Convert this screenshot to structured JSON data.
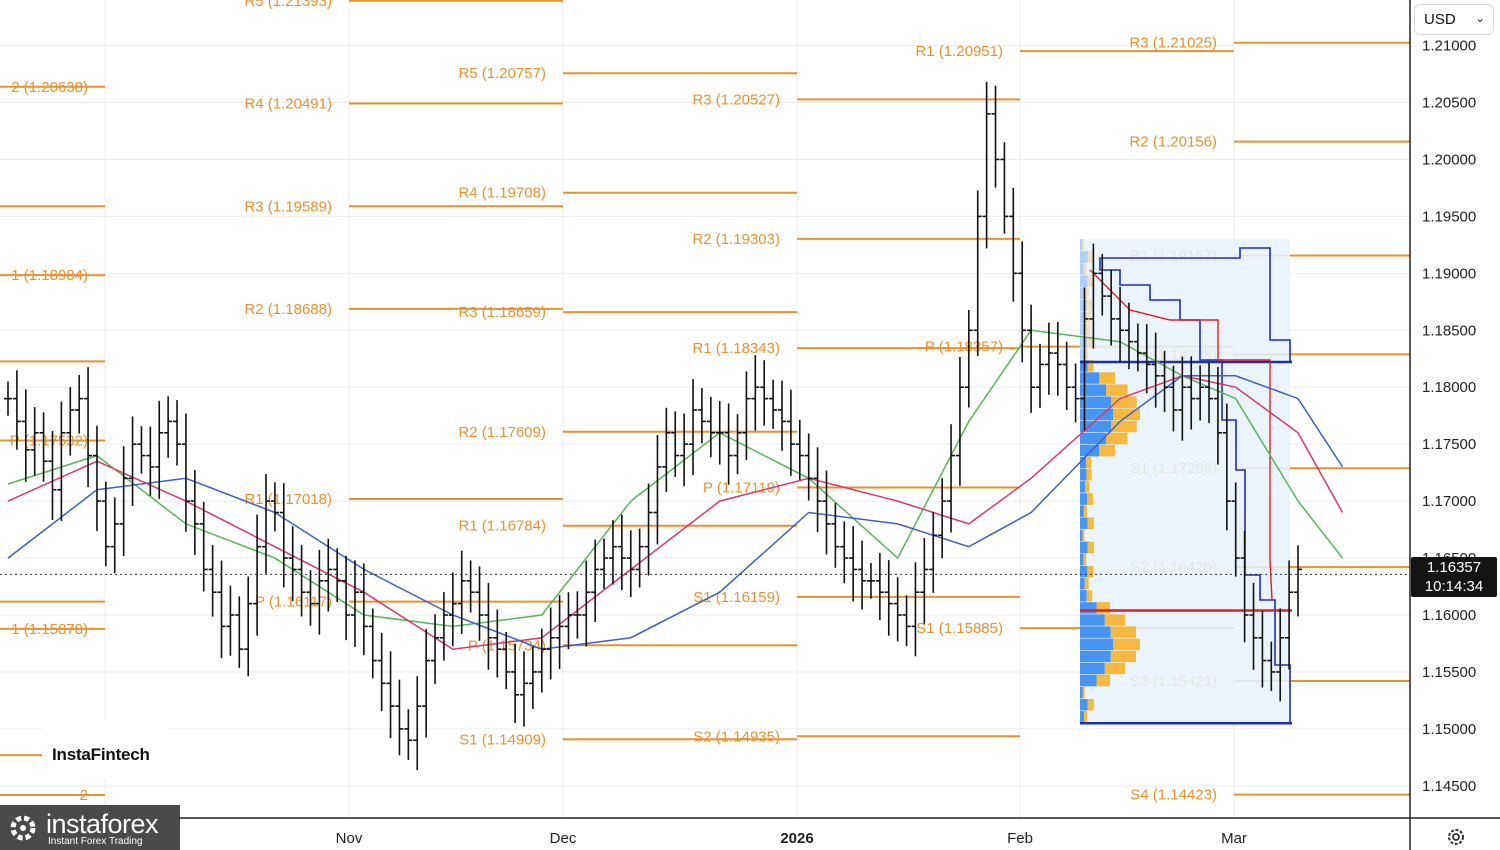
{
  "header": {
    "currency": "USD",
    "currency_chevron": "⌄"
  },
  "price_tag": {
    "price": "1.16357",
    "countdown": "10:14:34"
  },
  "branding": {
    "chart_brand": "InstaFintech",
    "footer_brand": "instaforex",
    "footer_tagline": "Instant Forex Trading"
  },
  "icons": {
    "settings": "settings-gear-icon",
    "footer_logo": "instaforex-logo-icon"
  },
  "colors": {
    "pivot": "#e8922e",
    "bars": "#111111",
    "ma_fast": "#5ab55a",
    "ma_mid": "#d63a6a",
    "ma_slow": "#3d5fc8",
    "poc": "#e02020",
    "vp_blue": "#3f8ef0",
    "vp_orange": "#f5b437",
    "vp_box": "#e8f2fd",
    "vp_border": "#1c2fb5"
  },
  "chart_data": {
    "type": "ohlc",
    "y_axis": {
      "min": 1.142,
      "max": 1.214,
      "ticks": [
        "1.21000",
        "1.20500",
        "1.20000",
        "1.19500",
        "1.19000",
        "1.18500",
        "1.18000",
        "1.17500",
        "1.17000",
        "1.16500",
        "1.16000",
        "1.15500",
        "1.15000",
        "1.14500"
      ]
    },
    "x_axis": {
      "labels": [
        "Nov",
        "Dec",
        "2026",
        "Feb",
        "Mar"
      ]
    },
    "last_price": 1.16357,
    "pivot_segments": [
      {
        "period": 0,
        "levels": [
          {
            "label": "2 (1.20638)",
            "value": 1.20638
          },
          {
            "label": "",
            "value": 1.19589
          },
          {
            "label": "1 (1.18984)",
            "value": 1.18984
          },
          {
            "label": "",
            "value": 1.18227
          },
          {
            "label": "P (1.17532)",
            "value": 1.17532
          },
          {
            "label": "",
            "value": 1.16117
          },
          {
            "label": "1 (1.15878)",
            "value": 1.15878
          },
          {
            "label": "",
            "value": 1.1477
          },
          {
            "label": "2",
            "value": 1.1442
          }
        ]
      },
      {
        "period": 1,
        "levels": [
          {
            "label": "R5 (1.21393)",
            "value": 1.21393
          },
          {
            "label": "R4 (1.20491)",
            "value": 1.20491
          },
          {
            "label": "R3 (1.19589)",
            "value": 1.19589
          },
          {
            "label": "R2 (1.18688)",
            "value": 1.18688
          },
          {
            "label": "R1 (1.17018)",
            "value": 1.17018
          },
          {
            "label": "P (1.16117)",
            "value": 1.16117
          }
        ]
      },
      {
        "period": 2,
        "levels": [
          {
            "label": "R5 (1.20757)",
            "value": 1.20757
          },
          {
            "label": "R4 (1.19708)",
            "value": 1.19708
          },
          {
            "label": "R3 (1.18659)",
            "value": 1.18659
          },
          {
            "label": "R2 (1.17609)",
            "value": 1.17609
          },
          {
            "label": "R1 (1.16784)",
            "value": 1.16784
          },
          {
            "label": "P (1.15734)",
            "value": 1.15734
          },
          {
            "label": "S1 (1.14909)",
            "value": 1.14909
          }
        ]
      },
      {
        "period": 3,
        "levels": [
          {
            "label": "R3 (1.20527)",
            "value": 1.20527
          },
          {
            "label": "R2 (1.19303)",
            "value": 1.19303
          },
          {
            "label": "R1 (1.18343)",
            "value": 1.18343
          },
          {
            "label": "P (1.17119)",
            "value": 1.17119
          },
          {
            "label": "S1 (1.16159)",
            "value": 1.16159
          },
          {
            "label": "S2 (1.14935)",
            "value": 1.14935
          }
        ]
      },
      {
        "period": 4,
        "levels": [
          {
            "label": "R1 (1.20951)",
            "value": 1.20951
          },
          {
            "label": "P (1.18357)",
            "value": 1.18357
          },
          {
            "label": "S1 (1.15885)",
            "value": 1.15885
          }
        ]
      },
      {
        "period": 5,
        "levels": [
          {
            "label": "R3 (1.21025)",
            "value": 1.21025
          },
          {
            "label": "R2 (1.20156)",
            "value": 1.20156
          },
          {
            "label": "R1 (1.19157)",
            "value": 1.19157
          },
          {
            "label": "P (1.18288)",
            "value": 1.18288
          },
          {
            "label": "S1 (1.17289)",
            "value": 1.17289
          },
          {
            "label": "S2 (1.16420)",
            "value": 1.1642
          },
          {
            "label": "S3 (1.15421)",
            "value": 1.15421
          },
          {
            "label": "S4 (1.14423)",
            "value": 1.14423
          }
        ]
      }
    ],
    "ohlc_closes": [
      1.179,
      1.177,
      1.1745,
      1.176,
      1.1735,
      1.171,
      1.176,
      1.178,
      1.179,
      1.174,
      1.17,
      1.166,
      1.168,
      1.172,
      1.175,
      1.174,
      1.173,
      1.176,
      1.177,
      1.175,
      1.17,
      1.168,
      1.164,
      1.162,
      1.159,
      1.16,
      1.157,
      1.161,
      1.166,
      1.17,
      1.169,
      1.165,
      1.164,
      1.162,
      1.161,
      1.163,
      1.164,
      1.163,
      1.16,
      1.162,
      1.159,
      1.156,
      1.154,
      1.152,
      1.15,
      1.149,
      1.152,
      1.156,
      1.158,
      1.16,
      1.161,
      1.163,
      1.162,
      1.16,
      1.158,
      1.157,
      1.155,
      1.153,
      1.154,
      1.155,
      1.157,
      1.158,
      1.159,
      1.16,
      1.16,
      1.162,
      1.164,
      1.165,
      1.166,
      1.165,
      1.164,
      1.166,
      1.169,
      1.173,
      1.176,
      1.174,
      1.175,
      1.178,
      1.177,
      1.176,
      1.176,
      1.174,
      1.176,
      1.179,
      1.18,
      1.179,
      1.178,
      1.177,
      1.175,
      1.174,
      1.172,
      1.17,
      1.168,
      1.166,
      1.165,
      1.164,
      1.163,
      1.163,
      1.162,
      1.161,
      1.16,
      1.159,
      1.162,
      1.164,
      1.167,
      1.17,
      1.174,
      1.18,
      1.185,
      1.195,
      1.204,
      1.2,
      1.195,
      1.19,
      1.185,
      1.18,
      1.182,
      1.183,
      1.182,
      1.18,
      1.179,
      1.186,
      1.19,
      1.188,
      1.186,
      1.185,
      1.184,
      1.183,
      1.182,
      1.181,
      1.18,
      1.178,
      1.18,
      1.179,
      1.18,
      1.179,
      1.176,
      1.17,
      1.165,
      1.16,
      1.158,
      1.156,
      1.155,
      1.158,
      1.162,
      1.164
    ],
    "ma_series": [
      {
        "name": "",
        "color": "#5ab55a",
        "values": [
          [
            0,
            1.1715
          ],
          [
            10,
            1.174
          ],
          [
            20,
            1.168
          ],
          [
            30,
            1.165
          ],
          [
            40,
            1.16
          ],
          [
            50,
            1.159
          ],
          [
            60,
            1.16
          ],
          [
            70,
            1.17
          ],
          [
            80,
            1.176
          ],
          [
            90,
            1.172
          ],
          [
            100,
            1.165
          ],
          [
            108,
            1.177
          ],
          [
            115,
            1.185
          ],
          [
            125,
            1.184
          ],
          [
            132,
            1.181
          ],
          [
            138,
            1.179
          ],
          [
            145,
            1.17
          ],
          [
            150,
            1.165
          ]
        ]
      },
      {
        "name": "",
        "color": "#d63a6a",
        "values": [
          [
            0,
            1.17
          ],
          [
            10,
            1.1735
          ],
          [
            20,
            1.17
          ],
          [
            30,
            1.166
          ],
          [
            40,
            1.162
          ],
          [
            50,
            1.157
          ],
          [
            60,
            1.158
          ],
          [
            70,
            1.164
          ],
          [
            80,
            1.17
          ],
          [
            90,
            1.172
          ],
          [
            100,
            1.17
          ],
          [
            108,
            1.168
          ],
          [
            115,
            1.172
          ],
          [
            125,
            1.179
          ],
          [
            132,
            1.181
          ],
          [
            138,
            1.18
          ],
          [
            145,
            1.176
          ],
          [
            150,
            1.169
          ]
        ]
      },
      {
        "name": "",
        "color": "#3d5fc8",
        "values": [
          [
            0,
            1.165
          ],
          [
            10,
            1.171
          ],
          [
            20,
            1.172
          ],
          [
            30,
            1.169
          ],
          [
            40,
            1.164
          ],
          [
            50,
            1.16
          ],
          [
            60,
            1.157
          ],
          [
            70,
            1.158
          ],
          [
            80,
            1.162
          ],
          [
            90,
            1.169
          ],
          [
            100,
            1.168
          ],
          [
            108,
            1.166
          ],
          [
            115,
            1.169
          ],
          [
            125,
            1.177
          ],
          [
            132,
            1.181
          ],
          [
            138,
            1.181
          ],
          [
            145,
            1.179
          ],
          [
            150,
            1.173
          ]
        ]
      }
    ],
    "volume_profile": {
      "price_top": 1.193,
      "price_bottom": 1.1505,
      "poc": 1.1604
    }
  }
}
